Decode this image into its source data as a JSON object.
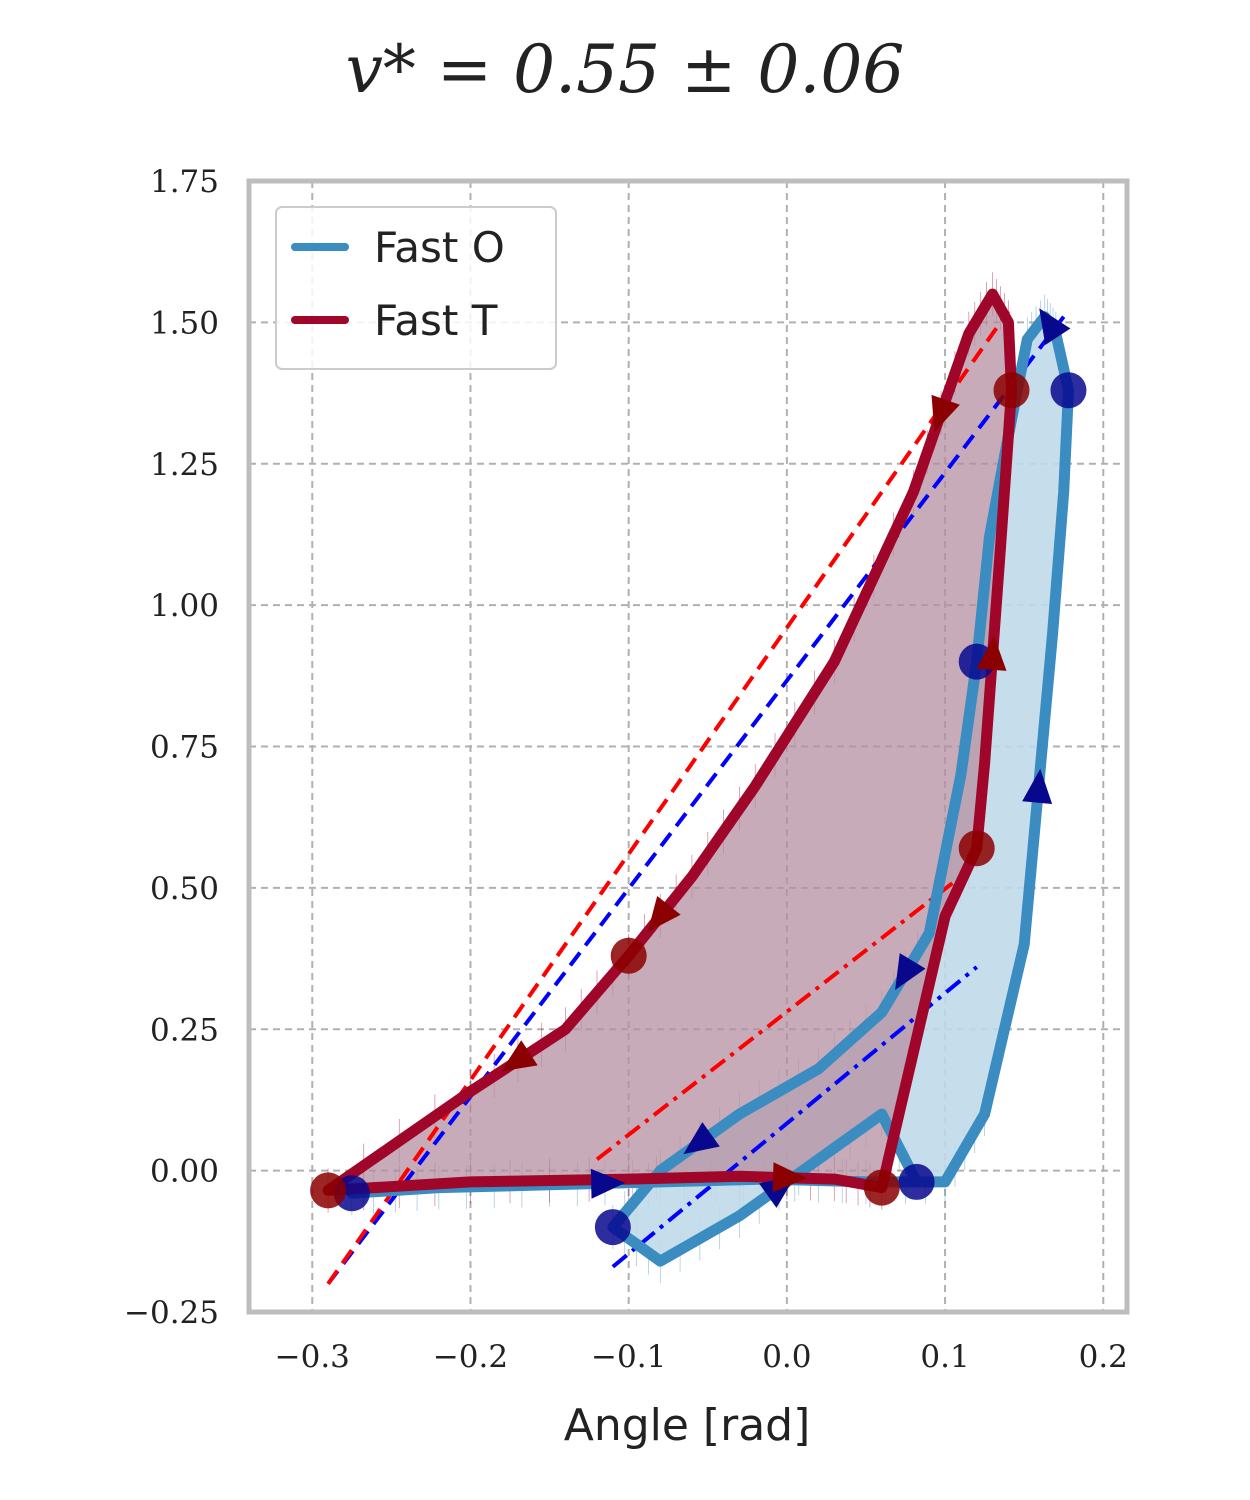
{
  "chart_data": {
    "type": "line",
    "title": "v* = 0.55 ± 0.06",
    "xlabel": "Angle [rad]",
    "ylabel": "",
    "xlim": [
      -0.34,
      0.215
    ],
    "ylim": [
      -0.25,
      1.75
    ],
    "x_ticks": [
      -0.3,
      -0.2,
      -0.1,
      0.0,
      0.1,
      0.2
    ],
    "x_tick_labels": [
      "−0.3",
      "−0.2",
      "−0.1",
      "0.0",
      "0.1",
      "0.2"
    ],
    "y_ticks": [
      -0.25,
      0.0,
      0.25,
      0.5,
      0.75,
      1.0,
      1.25,
      1.5,
      1.75
    ],
    "y_tick_labels": [
      "−0.25",
      "0.00",
      "0.25",
      "0.50",
      "0.75",
      "1.00",
      "1.25",
      "1.50",
      "1.75"
    ],
    "grid": true,
    "legend_position": "top-left",
    "colors": {
      "fast_o": "#3a8cc1",
      "fast_t": "#a0062a",
      "fill_o": "#c0d9ea",
      "fill_t": "#b58fa0",
      "marker_o": "#08088f",
      "marker_t": "#8b0000",
      "fit_o": "#0000ff",
      "fit_t": "#ff0000"
    },
    "series": [
      {
        "name": "Fast O",
        "x": [
          -0.275,
          -0.22,
          -0.15,
          -0.08,
          -0.01,
          0.05,
          0.1,
          0.125,
          0.15,
          0.168,
          0.175,
          0.178,
          0.17,
          0.163,
          0.152,
          0.14,
          0.128,
          0.12,
          0.11,
          0.09,
          0.06,
          0.02,
          -0.03,
          -0.08,
          -0.11,
          -0.08,
          -0.03,
          0.02,
          0.06,
          0.082
        ],
        "y": [
          -0.04,
          -0.03,
          -0.025,
          -0.02,
          -0.015,
          -0.02,
          -0.02,
          0.1,
          0.4,
          0.95,
          1.2,
          1.38,
          1.48,
          1.51,
          1.47,
          1.3,
          1.12,
          0.9,
          0.7,
          0.42,
          0.28,
          0.18,
          0.1,
          0.0,
          -0.1,
          -0.16,
          -0.08,
          0.02,
          0.1,
          -0.02
        ]
      },
      {
        "name": "Fast T",
        "x": [
          -0.29,
          -0.2,
          -0.1,
          -0.03,
          0.03,
          0.06,
          0.1,
          0.12,
          0.125,
          0.135,
          0.14,
          0.142,
          0.14,
          0.13,
          0.115,
          0.08,
          0.03,
          -0.02,
          -0.06,
          -0.1,
          -0.14,
          -0.2,
          -0.29
        ],
        "y": [
          -0.035,
          -0.02,
          -0.015,
          -0.01,
          -0.015,
          -0.03,
          0.45,
          0.57,
          0.72,
          1.1,
          1.3,
          1.38,
          1.5,
          1.55,
          1.48,
          1.2,
          0.9,
          0.68,
          0.52,
          0.38,
          0.25,
          0.14,
          -0.035
        ]
      }
    ]
  },
  "legend": {
    "items": [
      "Fast O",
      "Fast T"
    ]
  }
}
